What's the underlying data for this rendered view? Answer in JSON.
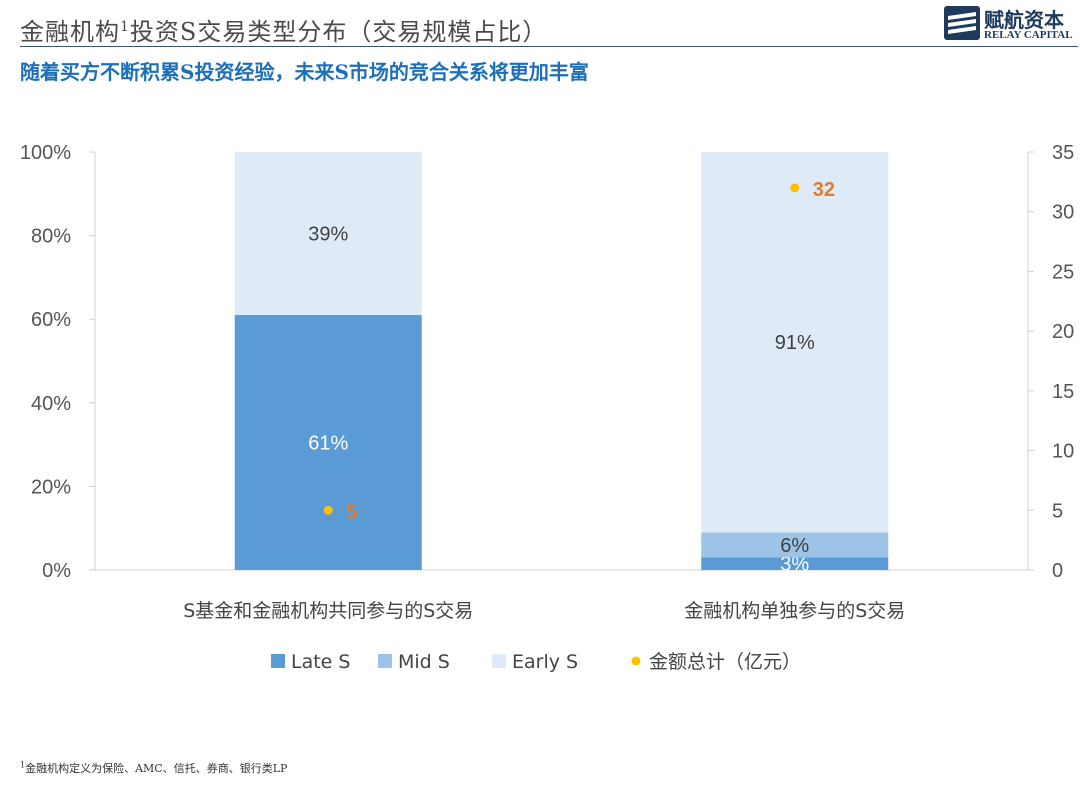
{
  "header": {
    "title_main": "金融机构",
    "title_sup": "1",
    "title_rest": "投资S交易类型分布（交易规模占比）",
    "subtitle": "随着买方不断积累S投资经验，未来S市场的竞合关系将更加丰富",
    "logo_cn": "赋航资本",
    "logo_en": "RELAY CAPITAL"
  },
  "footnote": {
    "sup": "1",
    "text": "金融机构定义为保险、AMC、信托、券商、银行类LP"
  },
  "chart_data": {
    "type": "bar",
    "stacked": true,
    "categories": [
      "S基金和金融机构共同参与的S交易",
      "金融机构单独参与的S交易"
    ],
    "series": [
      {
        "name": "Late S",
        "values": [
          61,
          3
        ],
        "labels": [
          "61%",
          "3%"
        ],
        "color": "#5b9bd5",
        "label_color": "#ffffff"
      },
      {
        "name": "Mid S",
        "values": [
          0,
          6
        ],
        "labels": [
          "",
          "6%"
        ],
        "color": "#9dc3e6",
        "label_color": "#404040"
      },
      {
        "name": "Early S",
        "values": [
          39,
          91
        ],
        "labels": [
          "39%",
          "91%"
        ],
        "color": "#deebf7",
        "label_color": "#404040"
      }
    ],
    "secondary": {
      "name": "金额总计（亿元）",
      "type": "scatter",
      "values": [
        5,
        32
      ],
      "labels": [
        "5",
        "32"
      ],
      "color": "#ffc000",
      "label_color": "#e07b2e"
    },
    "y_left": {
      "range": [
        0,
        100
      ],
      "ticks": [
        "0%",
        "20%",
        "40%",
        "60%",
        "80%",
        "100%"
      ],
      "tick_values": [
        0,
        20,
        40,
        60,
        80,
        100
      ]
    },
    "y_right": {
      "range": [
        0,
        35
      ],
      "ticks": [
        "0",
        "5",
        "10",
        "15",
        "20",
        "25",
        "30",
        "35"
      ],
      "tick_values": [
        0,
        5,
        10,
        15,
        20,
        25,
        30,
        35
      ]
    },
    "legend_position": "bottom",
    "grid": false
  }
}
